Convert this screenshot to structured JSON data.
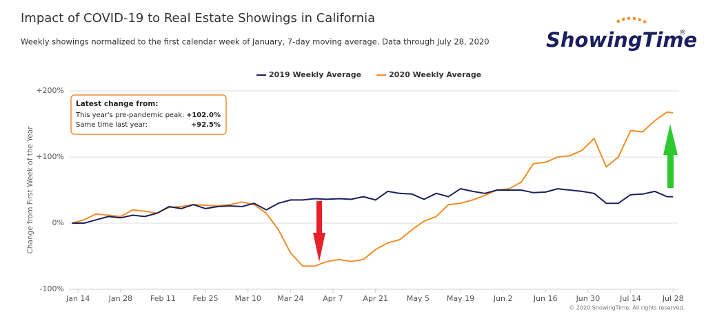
{
  "chart_data": {
    "type": "line",
    "title": "Impact of COVID-19 to Real Estate Showings in California",
    "subtitle": "Weekly showings normalized to the first calendar week of January, 7-day moving average. Data through July 28, 2020",
    "logo": "ShowingTime",
    "logo_mark": "®",
    "y_label": "Change from First Week of the Year",
    "credit": "© 2020 ShowingTime. All rights reserved.",
    "annotation": {
      "title": "Latest change from:",
      "rows": [
        [
          "This year's pre-pandemic peak:",
          "+102.0%"
        ],
        [
          "Same time last year:",
          "+92.5%"
        ]
      ]
    },
    "x": [
      12,
      16,
      20,
      24,
      28,
      32,
      36,
      40,
      44,
      48,
      52,
      56,
      60,
      64,
      68,
      72,
      76,
      80,
      84,
      88,
      92,
      96,
      100,
      104,
      108,
      112,
      116,
      120,
      124,
      128,
      132,
      136,
      140,
      144,
      148,
      152,
      156,
      160,
      164,
      168,
      172,
      176,
      180,
      184,
      188,
      192,
      196,
      200,
      204,
      208,
      210
    ],
    "series": [
      {
        "name": "2019 Weekly Average",
        "color": "#1b1f5e",
        "values": [
          0,
          0,
          5,
          10,
          8,
          12,
          10,
          15,
          25,
          22,
          28,
          22,
          25,
          26,
          25,
          30,
          20,
          30,
          35,
          35,
          37,
          36,
          37,
          36,
          40,
          35,
          48,
          45,
          44,
          36,
          45,
          40,
          52,
          48,
          45,
          50,
          50,
          50,
          46,
          47,
          52,
          50,
          48,
          45,
          30,
          30,
          43,
          44,
          48,
          40,
          40
        ]
      },
      {
        "name": "2020 Weekly Average",
        "color": "#f28c28",
        "values": [
          0,
          5,
          14,
          12,
          10,
          20,
          18,
          15,
          24,
          25,
          28,
          27,
          26,
          28,
          32,
          28,
          15,
          -10,
          -45,
          -65,
          -65,
          -58,
          -55,
          -58,
          -55,
          -40,
          -30,
          -25,
          -10,
          3,
          10,
          28,
          30,
          35,
          42,
          50,
          52,
          62,
          90,
          92,
          100,
          102,
          110,
          128,
          85,
          100,
          140,
          138,
          155,
          168,
          167
        ]
      }
    ],
    "xlim": [
      11,
      212
    ],
    "xticks": [
      {
        "value": 14,
        "label": "Jan 14"
      },
      {
        "value": 28,
        "label": "Jan 28"
      },
      {
        "value": 42,
        "label": "Feb 11"
      },
      {
        "value": 56,
        "label": "Feb 25"
      },
      {
        "value": 70,
        "label": "Mar 10"
      },
      {
        "value": 84,
        "label": "Mar 24"
      },
      {
        "value": 98,
        "label": "Apr 7"
      },
      {
        "value": 112,
        "label": "Apr 21"
      },
      {
        "value": 126,
        "label": "May 5"
      },
      {
        "value": 140,
        "label": "May 19"
      },
      {
        "value": 154,
        "label": "Jun 2"
      },
      {
        "value": 168,
        "label": "Jun 16"
      },
      {
        "value": 182,
        "label": "Jun 30"
      },
      {
        "value": 196,
        "label": "Jul 14"
      },
      {
        "value": 210,
        "label": "Jul 28"
      }
    ],
    "ylim": [
      -100,
      200
    ],
    "yticks": [
      {
        "value": -100,
        "label": "-100%"
      },
      {
        "value": 0,
        "label": "0%"
      },
      {
        "value": 100,
        "label": "+100%"
      },
      {
        "value": 200,
        "label": "+200%"
      }
    ],
    "grid": true
  }
}
